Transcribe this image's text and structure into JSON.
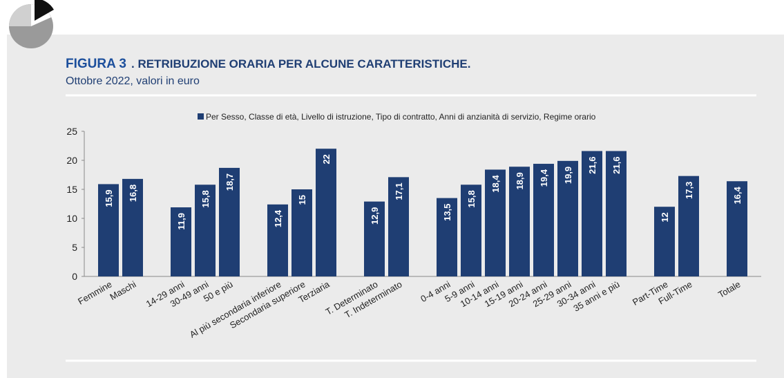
{
  "chart_data": {
    "type": "bar",
    "figure_label": "FIGURA 3",
    "title": ". RETRIBUZIONE ORARIA PER ALCUNE CARATTERISTICHE.",
    "subtitle": "Ottobre 2022, valori in euro",
    "series": [
      {
        "name": "Per Sesso, Classe di età, Livello di istruzione, Tipo di contratto, Anni di anzianità di servizio, Regime orario",
        "color": "#1f3e73",
        "values": [
          15.9,
          16.8,
          null,
          11.9,
          15.8,
          18.7,
          null,
          12.4,
          15,
          22,
          null,
          12.9,
          17.1,
          null,
          13.5,
          15.8,
          18.4,
          18.9,
          19.4,
          19.9,
          21.6,
          21.6,
          null,
          12,
          17.3,
          null,
          16.4
        ],
        "value_labels": [
          "15,9",
          "16,8",
          null,
          "11,9",
          "15,8",
          "18,7",
          null,
          "12,4",
          "15",
          "22",
          null,
          "12,9",
          "17,1",
          null,
          "13,5",
          "15,8",
          "18,4",
          "18,9",
          "19,4",
          "19,9",
          "21,6",
          "21,6",
          null,
          "12",
          "17,3",
          null,
          "16,4"
        ]
      }
    ],
    "categories": [
      "Femmine",
      "Maschi",
      null,
      "14-29 anni",
      "30-49 anni",
      "50 e più",
      null,
      "Al più secondaria inferiore",
      "Secondaria superiore",
      "Terziaria",
      null,
      "T. Determinato",
      "T. Indeterminato",
      null,
      "0-4 anni",
      "5-9 anni",
      "10-14 anni",
      "15-19 anni",
      "20-24 anni",
      "25-29 anni",
      "30-34 anni",
      "35 anni e più",
      null,
      "Part-Time",
      "Full-Time",
      null,
      "Totale"
    ],
    "ylim": [
      0,
      25
    ],
    "yticks": [
      0,
      5,
      10,
      15,
      20,
      25
    ],
    "legend": "top"
  }
}
